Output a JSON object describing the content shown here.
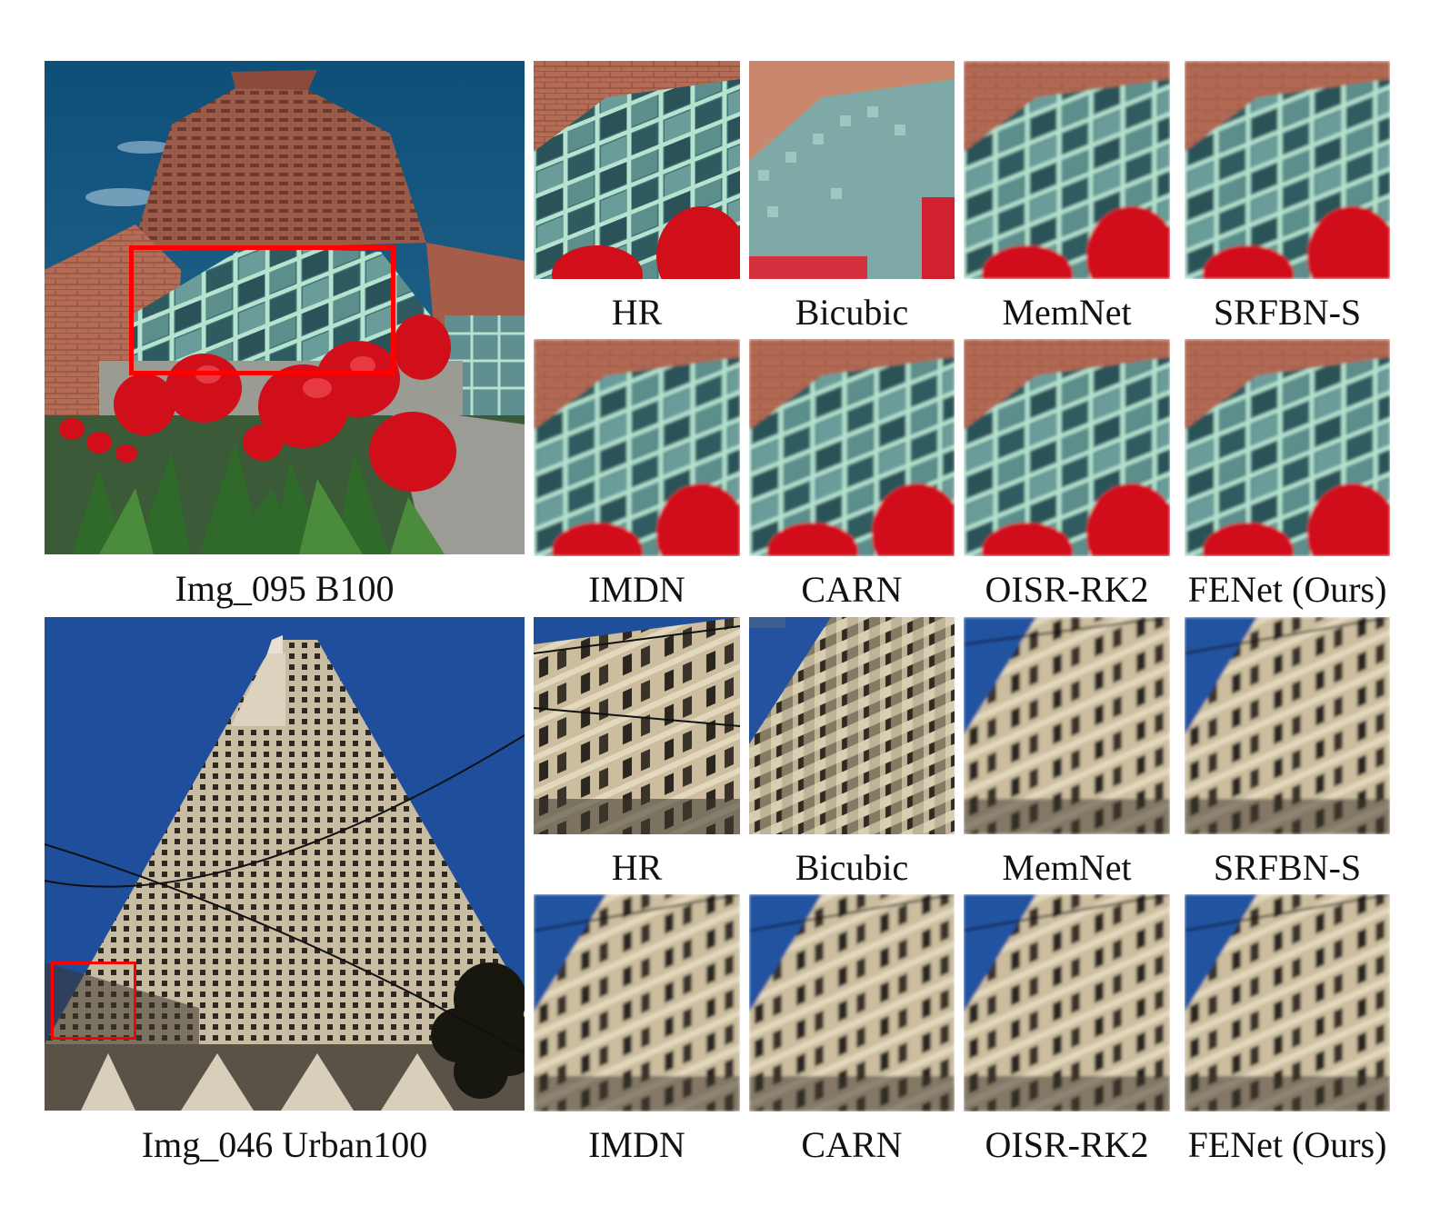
{
  "rows": [
    {
      "image_caption": "Img_095 B100",
      "crop_labels_top": [
        "HR",
        "Bicubic",
        "MemNet",
        "SRFBN-S"
      ],
      "crop_labels_bottom": [
        "IMDN",
        "CARN",
        "OISR-RK2",
        "FENet (Ours)"
      ]
    },
    {
      "image_caption": "Img_046 Urban100",
      "crop_labels_top": [
        "HR",
        "Bicubic",
        "MemNet",
        "SRFBN-S"
      ],
      "crop_labels_bottom": [
        "IMDN",
        "CARN",
        "OISR-RK2",
        "FENet (Ours)"
      ]
    }
  ],
  "colors": {
    "highlight_box": "#ff0000",
    "sky": "#1d4a8c",
    "brick": "#b86a52",
    "glass": "#4d8a87",
    "tulip": "#d0101a",
    "concrete": "#c9b99a"
  }
}
